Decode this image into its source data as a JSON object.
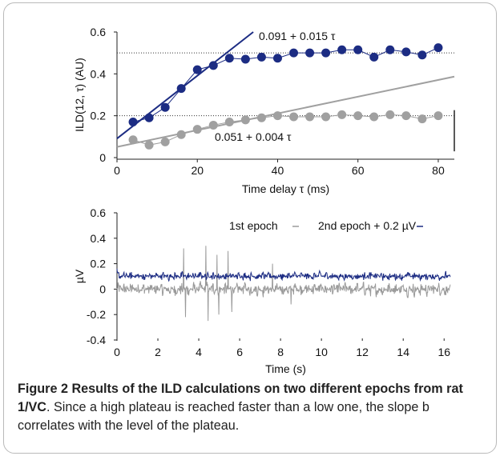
{
  "chart_data": [
    {
      "type": "scatter",
      "xlabel": "Time delay τ (ms)",
      "ylabel": "ILD(12, τ) (AU)",
      "xlim": [
        0,
        84
      ],
      "ylim": [
        0,
        0.6
      ],
      "xticks": [
        "0",
        "20",
        "40",
        "60",
        "80"
      ],
      "yticks": [
        "0",
        "0.2",
        "0.4",
        "0.6"
      ],
      "plateau_lines": [
        0.5,
        0.2
      ],
      "series": [
        {
          "color": "#1c2c83",
          "x": [
            4,
            8,
            12,
            16,
            20,
            24,
            28,
            32,
            36,
            40,
            44,
            48,
            52,
            56,
            60,
            64,
            68,
            72,
            76,
            80
          ],
          "y": [
            0.17,
            0.19,
            0.24,
            0.33,
            0.42,
            0.44,
            0.475,
            0.47,
            0.48,
            0.475,
            0.5,
            0.5,
            0.5,
            0.515,
            0.515,
            0.48,
            0.515,
            0.505,
            0.49,
            0.525
          ],
          "fit": {
            "intercept": 0.091,
            "slope": 0.015,
            "label": "0.091 + 0.015 τ"
          }
        },
        {
          "color": "#a0a0a0",
          "x": [
            4,
            8,
            12,
            16,
            20,
            24,
            28,
            32,
            36,
            40,
            44,
            48,
            52,
            56,
            60,
            64,
            68,
            72,
            76,
            80
          ],
          "y": [
            0.085,
            0.06,
            0.075,
            0.11,
            0.135,
            0.155,
            0.17,
            0.18,
            0.19,
            0.2,
            0.195,
            0.195,
            0.195,
            0.205,
            0.2,
            0.195,
            0.205,
            0.2,
            0.185,
            0.2
          ],
          "fit": {
            "intercept": 0.051,
            "slope": 0.004,
            "label": "0.051 + 0.004 τ"
          }
        }
      ]
    },
    {
      "type": "line",
      "xlabel": "Time (s)",
      "ylabel": "µV",
      "xlim": [
        0,
        16.5
      ],
      "ylim": [
        -0.4,
        0.6
      ],
      "xticks": [
        "0",
        "2",
        "4",
        "6",
        "8",
        "10",
        "12",
        "14",
        "16"
      ],
      "yticks": [
        "-0.4",
        "-0.2",
        "0",
        "0.2",
        "0.4",
        "0.6"
      ],
      "legend": [
        "1st epoch",
        "2nd epoch + 0.2 µV"
      ],
      "series": [
        {
          "name": "1st epoch",
          "color": "#9a9a9a",
          "mean": 0.0,
          "amplitude": 0.08
        },
        {
          "name": "2nd epoch + 0.2 µV",
          "color": "#1c2c83",
          "mean": 0.22,
          "amplitude": 0.05
        }
      ]
    }
  ],
  "caption": {
    "title": "Figure 2 Results of the ILD calculations on two different epochs from rat 1/VC",
    "text": ". Since a high plateau is reached faster than a low one, the slope b correlates with the level of the plateau."
  }
}
